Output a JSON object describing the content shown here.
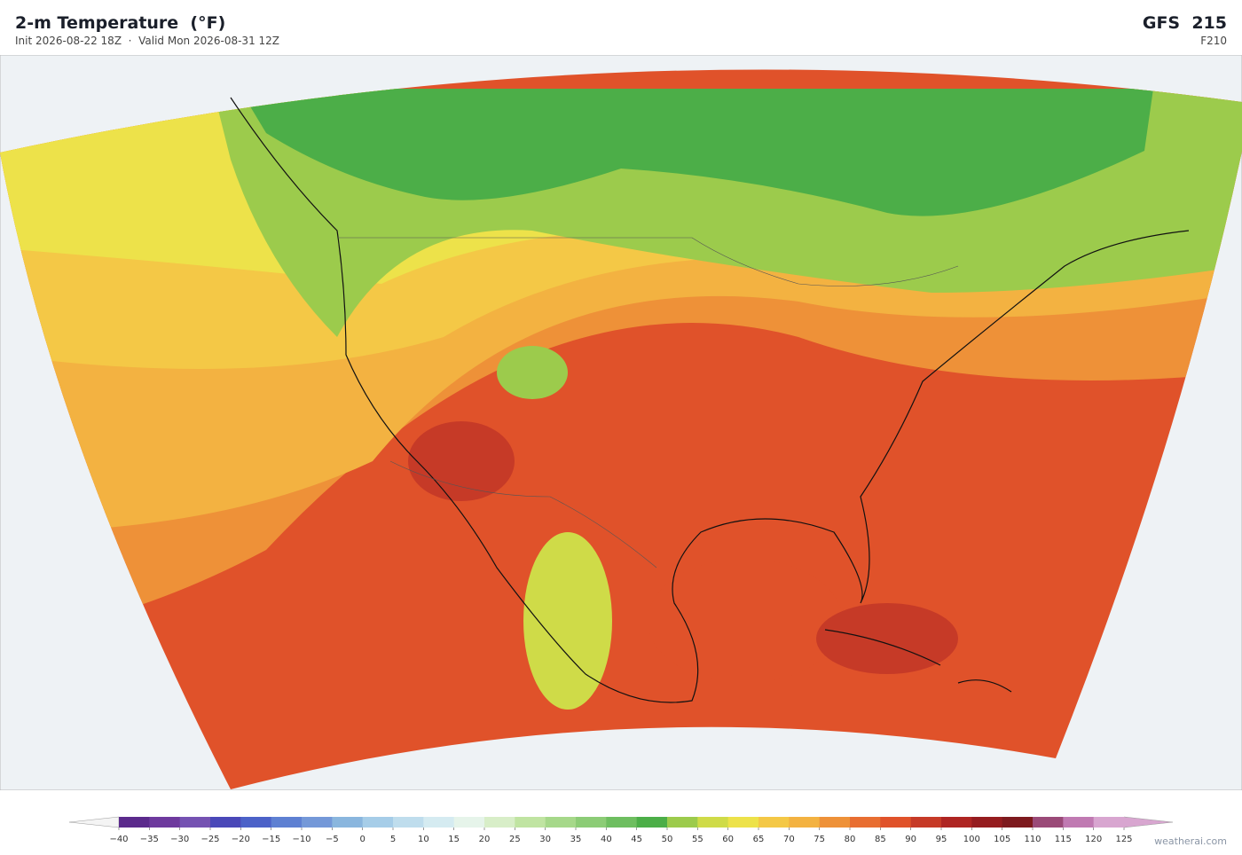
{
  "header": {
    "title": "2-m Temperature  (°F)",
    "subtitle": "Init 2026-08-22 18Z  ·  Valid Mon 2026-08-31 12Z",
    "model": "GFS  215",
    "forecast_hour": "F210"
  },
  "colorbar": {
    "ticks": [
      {
        "value": -40,
        "label": "−40"
      },
      {
        "value": -35,
        "label": "−35"
      },
      {
        "value": -30,
        "label": "−30"
      },
      {
        "value": -25,
        "label": "−25"
      },
      {
        "value": -20,
        "label": "−20"
      },
      {
        "value": -15,
        "label": "−15"
      },
      {
        "value": -10,
        "label": "−10"
      },
      {
        "value": -5,
        "label": "−5"
      },
      0,
      5,
      10,
      15,
      20,
      25,
      30,
      35,
      40,
      45,
      50,
      55,
      60,
      65,
      70,
      75,
      80,
      85,
      90,
      95,
      100,
      105,
      110,
      115,
      120,
      125
    ],
    "colors": [
      "#5b2a8c",
      "#6e3a9e",
      "#7552b2",
      "#4a48b8",
      "#4c62c8",
      "#5e80d2",
      "#7498d8",
      "#8ab6de",
      "#a6cde8",
      "#bfdded",
      "#d5ebf1",
      "#e6f4ea",
      "#d8eec8",
      "#c0e4a2",
      "#a6d88a",
      "#8ccc76",
      "#6ebe60",
      "#4cae48",
      "#9ccb4c",
      "#cfdb48",
      "#ede24a",
      "#f4c846",
      "#f3b241",
      "#ee9138",
      "#e86e31",
      "#e0522a",
      "#c63a27",
      "#ae2522",
      "#951c1f",
      "#7d1a1e",
      "#9a4a78",
      "#c07ab2",
      "#d8a6d0"
    ]
  },
  "credit": "weatherai.com"
}
